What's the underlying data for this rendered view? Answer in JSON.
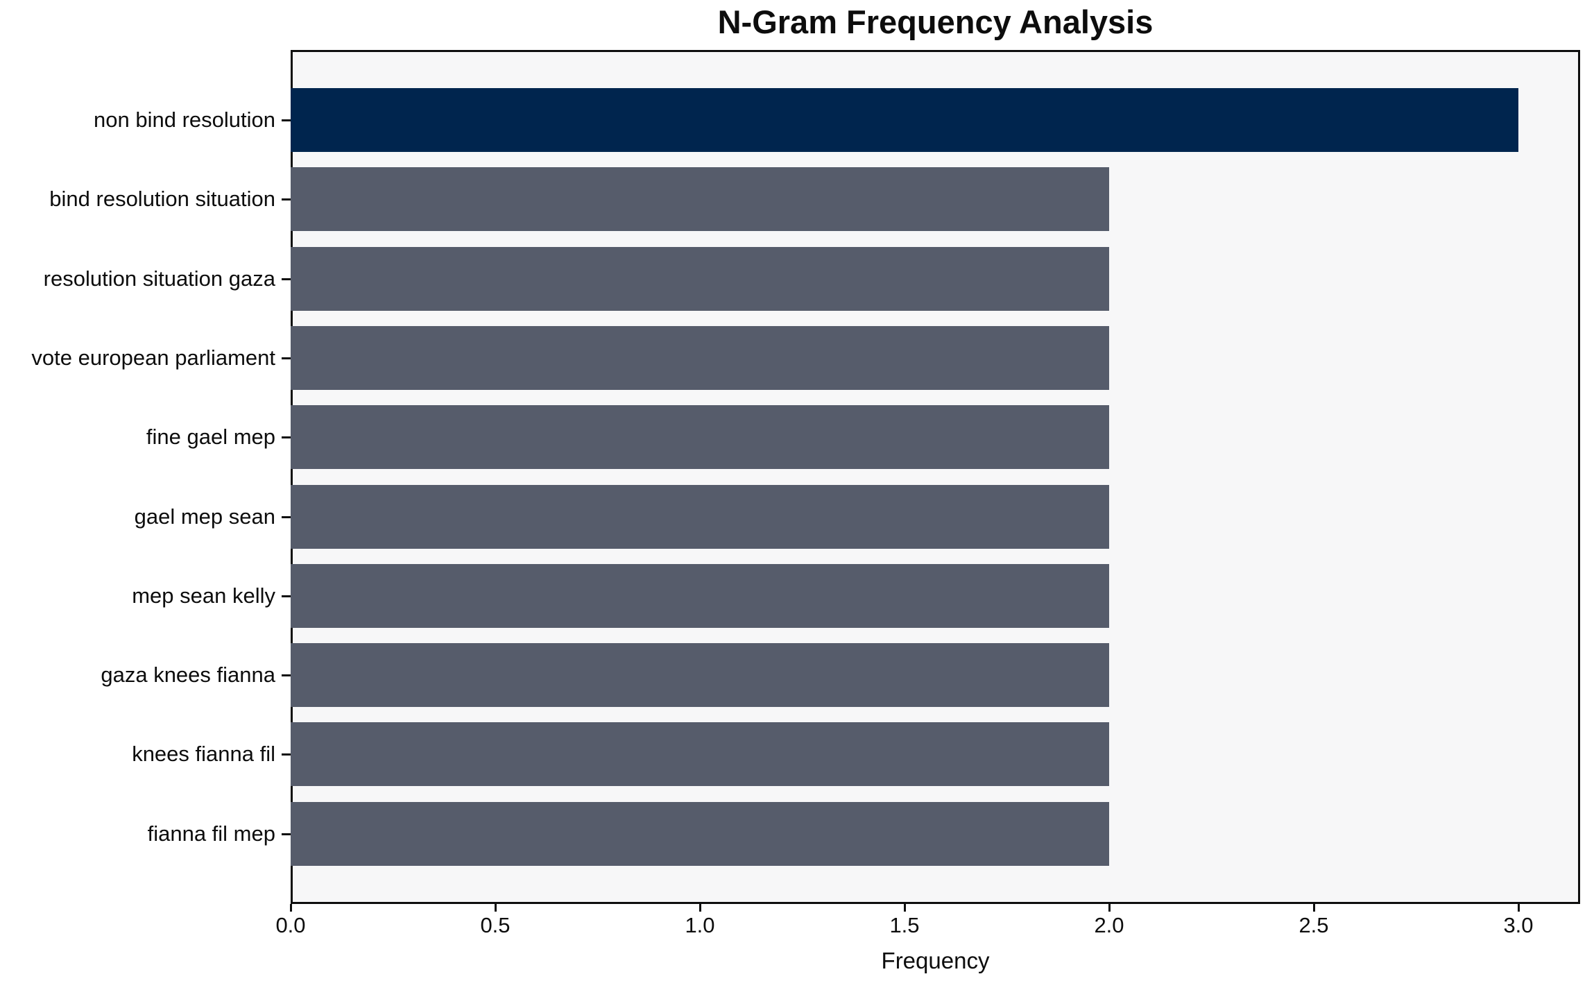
{
  "chart_data": {
    "type": "bar",
    "orientation": "horizontal",
    "title": "N-Gram Frequency Analysis",
    "xlabel": "Frequency",
    "categories": [
      "non bind resolution",
      "bind resolution situation",
      "resolution situation gaza",
      "vote european parliament",
      "fine gael mep",
      "gael mep sean",
      "mep sean kelly",
      "gaza knees fianna",
      "knees fianna fil",
      "fianna fil mep"
    ],
    "values": [
      3,
      2,
      2,
      2,
      2,
      2,
      2,
      2,
      2,
      2
    ],
    "highlight_index": 0,
    "xlim": [
      0,
      3.15
    ],
    "xticks": [
      0.0,
      0.5,
      1.0,
      1.5,
      2.0,
      2.5,
      3.0
    ],
    "xtick_labels": [
      "0.0",
      "0.5",
      "1.0",
      "1.5",
      "2.0",
      "2.5",
      "3.0"
    ],
    "grid": false,
    "legend": null,
    "colors": {
      "highlight_bar": "#00254e",
      "default_bar": "#565c6b",
      "plot_background": "#f7f7f8",
      "figure_background": "#ffffff",
      "axis": "#0f0f0f",
      "text": "#0d0d0d"
    }
  }
}
